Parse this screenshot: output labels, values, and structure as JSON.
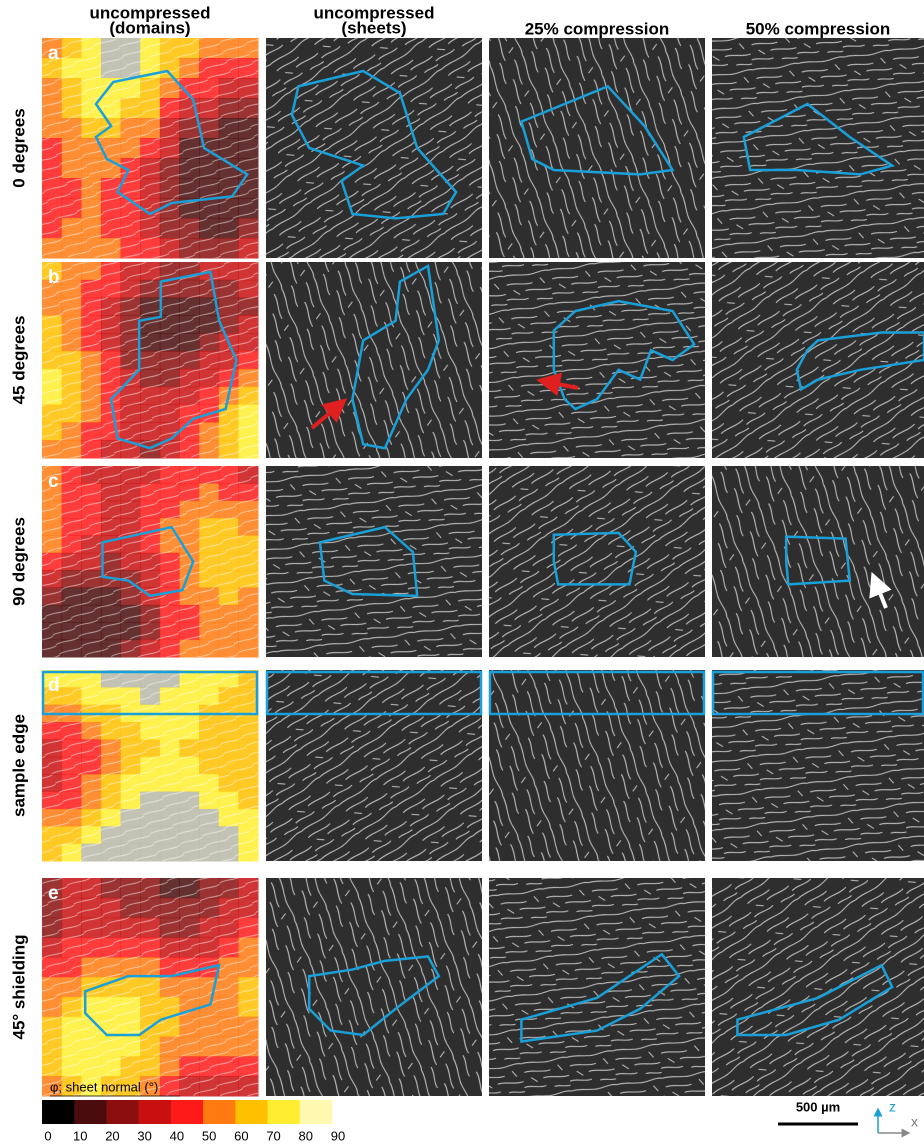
{
  "figure": {
    "column_headers": [
      [
        "uncompressed",
        "(domains)"
      ],
      [
        "uncompressed",
        "(sheets)"
      ],
      [
        "25% compression"
      ],
      [
        "50% compression"
      ]
    ],
    "rows": [
      {
        "letter": "a",
        "label": "0 degrees"
      },
      {
        "letter": "b",
        "label": "45 degrees"
      },
      {
        "letter": "c",
        "label": "90 degrees"
      },
      {
        "letter": "d",
        "label": "sample edge"
      },
      {
        "letter": "e",
        "label": "45° shielding"
      }
    ],
    "colorbar": {
      "label": "φ; sheet normal (°)",
      "colors": [
        "#000000",
        "#4a0c0c",
        "#8b0f0f",
        "#c81010",
        "#ff1a1a",
        "#ff7a10",
        "#ffc000",
        "#ffee30",
        "#fff8b0"
      ],
      "ticks": [
        0,
        10,
        20,
        30,
        40,
        50,
        60,
        70,
        80,
        90
      ]
    },
    "scale_bar": "500 µm",
    "axes": {
      "vertical": "z",
      "horizontal": "x"
    }
  }
}
